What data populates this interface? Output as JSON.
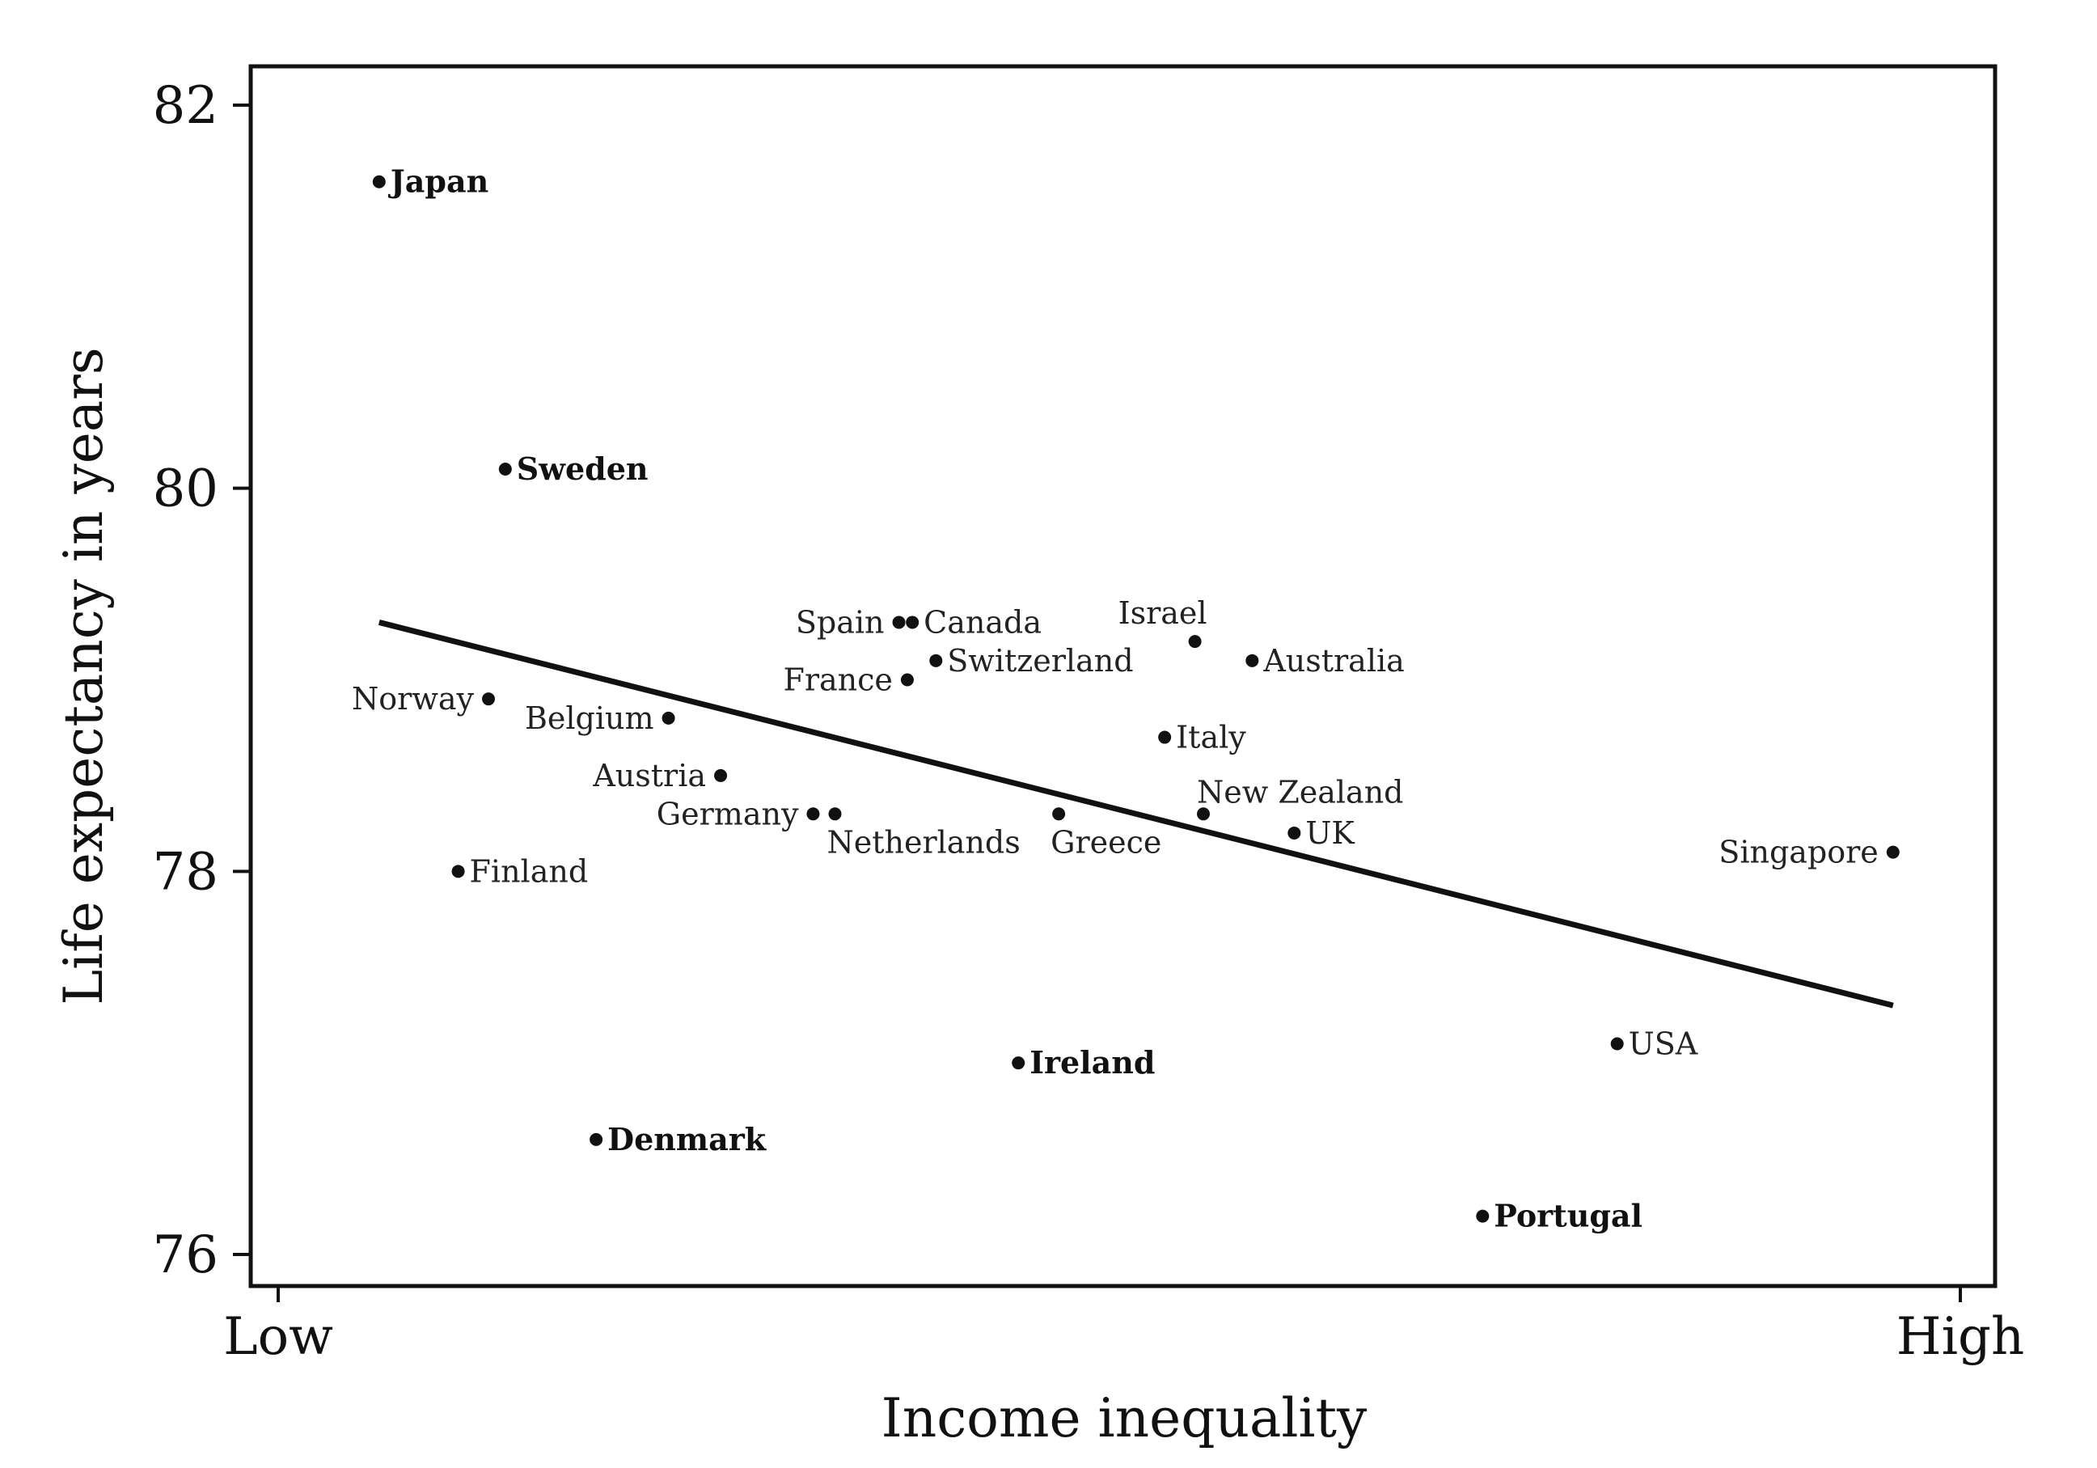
{
  "chart_data": {
    "type": "scatter",
    "xlabel": "Income inequality",
    "ylabel": "Life expectancy in years",
    "xlim": [
      0,
      10
    ],
    "x_tick_labels": [
      "Low",
      "High"
    ],
    "ylim": [
      75.8,
      82.3
    ],
    "y_ticks": [
      76,
      78,
      80,
      82
    ],
    "grid": false,
    "points": [
      {
        "label": "Japan",
        "x": 0.6,
        "y": 81.6,
        "bold": true,
        "anchor": "right"
      },
      {
        "label": "Sweden",
        "x": 1.35,
        "y": 80.1,
        "bold": true,
        "anchor": "right"
      },
      {
        "label": "Norway",
        "x": 1.25,
        "y": 78.9,
        "bold": false,
        "anchor": "left"
      },
      {
        "label": "Finland",
        "x": 1.07,
        "y": 78.0,
        "bold": false,
        "anchor": "right"
      },
      {
        "label": "Belgium",
        "x": 2.32,
        "y": 78.8,
        "bold": false,
        "anchor": "left"
      },
      {
        "label": "Austria",
        "x": 2.63,
        "y": 78.5,
        "bold": false,
        "anchor": "left"
      },
      {
        "label": "Denmark",
        "x": 1.89,
        "y": 76.6,
        "bold": true,
        "anchor": "right"
      },
      {
        "label": "Germany",
        "x": 3.18,
        "y": 78.3,
        "bold": false,
        "anchor": "left"
      },
      {
        "label": "Netherlands",
        "x": 3.31,
        "y": 78.3,
        "bold": false,
        "anchor": "below"
      },
      {
        "label": "Spain",
        "x": 3.69,
        "y": 79.3,
        "bold": false,
        "anchor": "left"
      },
      {
        "label": "Canada",
        "x": 3.77,
        "y": 79.3,
        "bold": false,
        "anchor": "right"
      },
      {
        "label": "France",
        "x": 3.74,
        "y": 79.0,
        "bold": false,
        "anchor": "left"
      },
      {
        "label": "Switzerland",
        "x": 3.91,
        "y": 79.1,
        "bold": false,
        "anchor": "right"
      },
      {
        "label": "Ireland",
        "x": 4.4,
        "y": 77.0,
        "bold": true,
        "anchor": "right"
      },
      {
        "label": "Greece",
        "x": 4.64,
        "y": 78.3,
        "bold": false,
        "anchor": "below"
      },
      {
        "label": "Israel",
        "x": 5.45,
        "y": 79.2,
        "bold": false,
        "anchor": "above"
      },
      {
        "label": "Italy",
        "x": 5.27,
        "y": 78.7,
        "bold": false,
        "anchor": "right"
      },
      {
        "label": "Australia",
        "x": 5.79,
        "y": 79.1,
        "bold": false,
        "anchor": "right"
      },
      {
        "label": "New Zealand",
        "x": 5.5,
        "y": 78.3,
        "bold": false,
        "anchor": "above-right"
      },
      {
        "label": "UK",
        "x": 6.04,
        "y": 78.2,
        "bold": false,
        "anchor": "right"
      },
      {
        "label": "Portugal",
        "x": 7.16,
        "y": 76.2,
        "bold": true,
        "anchor": "right"
      },
      {
        "label": "USA",
        "x": 7.96,
        "y": 77.1,
        "bold": false,
        "anchor": "right"
      },
      {
        "label": "Singapore",
        "x": 9.6,
        "y": 78.1,
        "bold": false,
        "anchor": "left"
      }
    ],
    "trend_line": {
      "x": [
        0.6,
        9.6
      ],
      "y": [
        79.3,
        77.3
      ]
    }
  }
}
